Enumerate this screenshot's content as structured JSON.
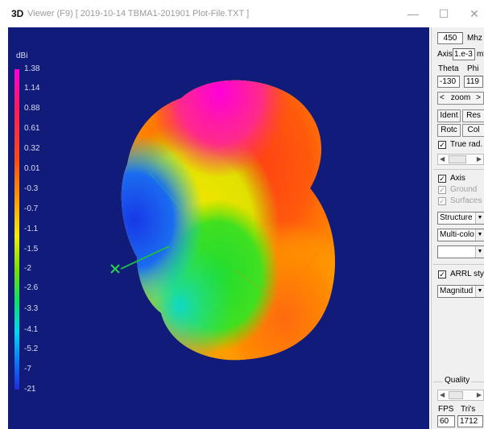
{
  "titlebar": {
    "logo": "3D",
    "title": "Viewer (F9)    [ 2019-10-14 TBMA1-201901 Plot-File.TXT ]",
    "minimize_icon": "minimize-icon",
    "maximize_icon": "maximize-icon",
    "close_icon": "close-icon"
  },
  "legend": {
    "unit": "dBi",
    "levels": [
      "1.38",
      "1.14",
      "0.88",
      "0.61",
      "0.32",
      "0.01",
      "-0.3",
      "-0.7",
      "-1.1",
      "-1.5",
      "-2",
      "-2.6",
      "-3.3",
      "-4.1",
      "-5.2",
      "-7",
      "-21"
    ]
  },
  "panel": {
    "frequency": "450",
    "frequency_unit": "Mhz",
    "axis_label": "Axis",
    "axis_value": "1.e-3",
    "axis_unit": "mtr",
    "theta_label": "Theta",
    "phi_label": "Phi",
    "theta_value": "-130",
    "phi_value": "119",
    "zoom_label": "zoom",
    "zoom_left": "<",
    "zoom_right": ">",
    "ident_label": "Ident",
    "reset_label": "Res",
    "rotate_label": "Rotc",
    "color_label": "Col",
    "true_rad_label": "True rad.",
    "true_rad_checked": true,
    "axis_check_label": "Axis",
    "axis_checked": true,
    "ground_label": "Ground",
    "ground_checked": true,
    "surfaces_label": "Surfaces",
    "surfaces_checked": true,
    "structure_select": "Structure",
    "color_select": "Multi-colo",
    "empty_select": "",
    "arrl_label": "ARRL style",
    "arrl_checked": true,
    "magnitude_select": "Magnitud",
    "quality_label": "Quality",
    "fps_label": "FPS",
    "tris_label": "Tri's",
    "fps_value": "60",
    "tris_value": "1712"
  },
  "colors": {
    "background": "#111b7a",
    "max": "#ff00d8",
    "min": "#1a33e0"
  }
}
